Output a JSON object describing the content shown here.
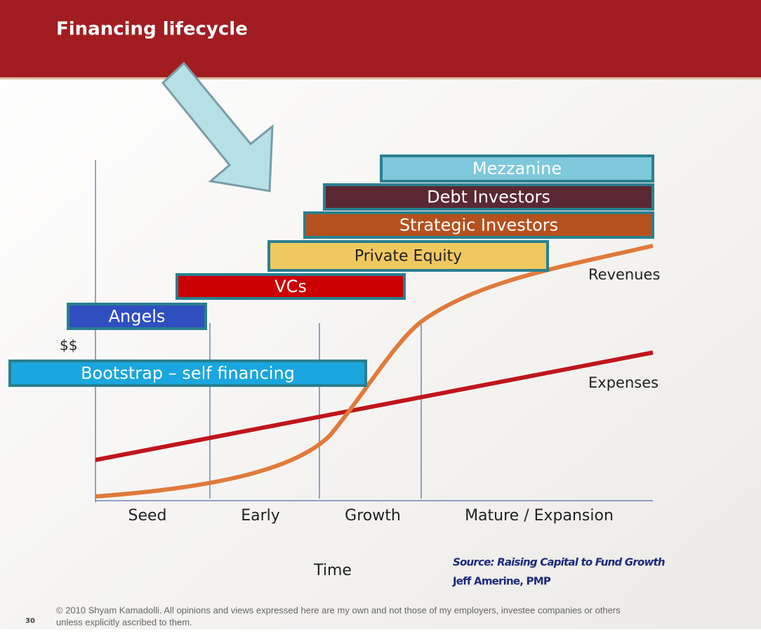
{
  "header": {
    "title": "Financing lifecycle"
  },
  "bars": [
    {
      "label": "Mezzanine"
    },
    {
      "label": "Debt Investors"
    },
    {
      "label": "Strategic Investors"
    },
    {
      "label": "Private Equity"
    },
    {
      "label": "VCs"
    },
    {
      "label": "Angels"
    },
    {
      "label": "Bootstrap – self financing"
    }
  ],
  "axes": {
    "y_label": "$$",
    "x_label": "Time",
    "stages": [
      "Seed",
      "Early",
      "Growth",
      "Mature / Expansion"
    ]
  },
  "curves": {
    "revenues": "Revenues",
    "expenses": "Expenses"
  },
  "source": {
    "line1": "Source: Raising Capital to Fund Growth",
    "line2": "Jeff Amerine, PMP"
  },
  "footer": {
    "page": "30",
    "copyright": [
      "© 2010 Shyam Kamadolli. All opinions and views expressed here are my own and not those of my employers, investee companies or others",
      "unless explicitly ascribed to them."
    ]
  }
}
